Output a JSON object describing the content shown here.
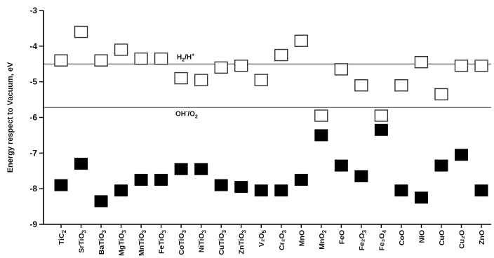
{
  "chart_data": {
    "type": "scatter",
    "ylabel": "Energy respect to Vacuum, eV",
    "ylim": [
      -9,
      -3
    ],
    "yticks": [
      "-3",
      "-4",
      "-5",
      "-6",
      "-7",
      "-8",
      "-9"
    ],
    "categories": [
      {
        "main": "TiC",
        "sub": "2"
      },
      {
        "main": "SrTiO",
        "sub": "3"
      },
      {
        "main": "BaTiO",
        "sub": "3"
      },
      {
        "main": "MgTiO",
        "sub": "3"
      },
      {
        "main": "MnTiO",
        "sub": "3"
      },
      {
        "main": "FeTiO",
        "sub": "3"
      },
      {
        "main": "CoTiO",
        "sub": "3"
      },
      {
        "main": "NiTiO",
        "sub": "3"
      },
      {
        "main": "CuTiO",
        "sub": "3"
      },
      {
        "main": "ZnTiO",
        "sub": "3"
      },
      {
        "main": "V₂O",
        "sub": "5"
      },
      {
        "main": "Cr₂O",
        "sub": "3"
      },
      {
        "main": "MnO",
        "sub": ""
      },
      {
        "main": "MnO",
        "sub": "2"
      },
      {
        "main": "FeO",
        "sub": ""
      },
      {
        "main": "Fe₂O",
        "sub": "3"
      },
      {
        "main": "Fe₃O",
        "sub": "4"
      },
      {
        "main": "CoO",
        "sub": ""
      },
      {
        "main": "NiO",
        "sub": ""
      },
      {
        "main": "CuO",
        "sub": ""
      },
      {
        "main": "Cu₂O",
        "sub": ""
      },
      {
        "main": "ZnO",
        "sub": ""
      }
    ],
    "series": [
      {
        "marker": "open-square",
        "values": [
          -4.4,
          -3.6,
          -4.4,
          -4.1,
          -4.35,
          -4.35,
          -4.9,
          -4.95,
          -4.6,
          -4.55,
          -4.95,
          -4.25,
          -3.85,
          -5.95,
          -4.65,
          -5.1,
          -5.95,
          -5.1,
          -4.45,
          -5.35,
          -4.55,
          -4.55
        ]
      },
      {
        "marker": "filled-square",
        "values": [
          -7.9,
          -7.3,
          -8.35,
          -8.05,
          -7.75,
          -7.75,
          -7.45,
          -7.45,
          -7.9,
          -7.95,
          -8.05,
          -8.05,
          -7.75,
          -6.5,
          -7.35,
          -7.65,
          -6.35,
          -8.05,
          -8.25,
          -7.35,
          -7.05,
          -8.05
        ]
      }
    ],
    "reference_lines": [
      {
        "label_main": "H",
        "label_sub": "2",
        "label_rest": "/H",
        "label_sup": "+",
        "y": -4.5
      },
      {
        "label_main": "OH",
        "label_sup": "-",
        "label_rest": "/O",
        "label_sub": "2",
        "y": -5.72
      }
    ],
    "grid": false,
    "legend": "none"
  }
}
